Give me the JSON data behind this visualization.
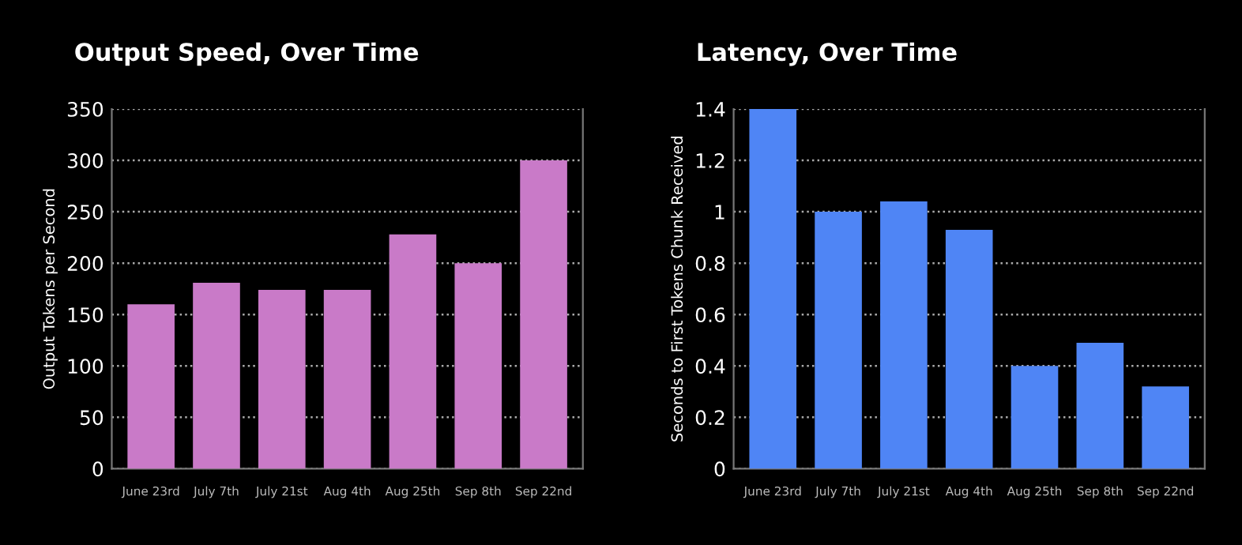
{
  "chart_data": [
    {
      "type": "bar",
      "title": "Output Speed, Over Time",
      "ylabel": "Output Tokens per Second",
      "categories": [
        "June 23rd",
        "July 7th",
        "July 21st",
        "Aug 4th",
        "Aug 25th",
        "Sep 8th",
        "Sep 22nd"
      ],
      "values": [
        160,
        181,
        174,
        174,
        228,
        200,
        300
      ],
      "color": "#c97ac8",
      "ylim": [
        0,
        350
      ],
      "yticks": [
        0,
        50,
        100,
        150,
        200,
        250,
        300,
        350
      ],
      "grid": "y"
    },
    {
      "type": "bar",
      "title": "Latency, Over Time",
      "ylabel": "Seconds to First Tokens Chunk Received",
      "categories": [
        "June 23rd",
        "July 7th",
        "July 21st",
        "Aug 4th",
        "Aug 25th",
        "Sep 8th",
        "Sep 22nd"
      ],
      "values": [
        1.4,
        1.0,
        1.04,
        0.93,
        0.4,
        0.49,
        0.32
      ],
      "color": "#4f85f5",
      "ylim": [
        0,
        1.4
      ],
      "yticks": [
        0,
        0.2,
        0.4,
        0.6,
        0.8,
        {
          "value": 1,
          "label": "1"
        },
        1.2,
        1.4
      ],
      "grid": "y"
    }
  ]
}
